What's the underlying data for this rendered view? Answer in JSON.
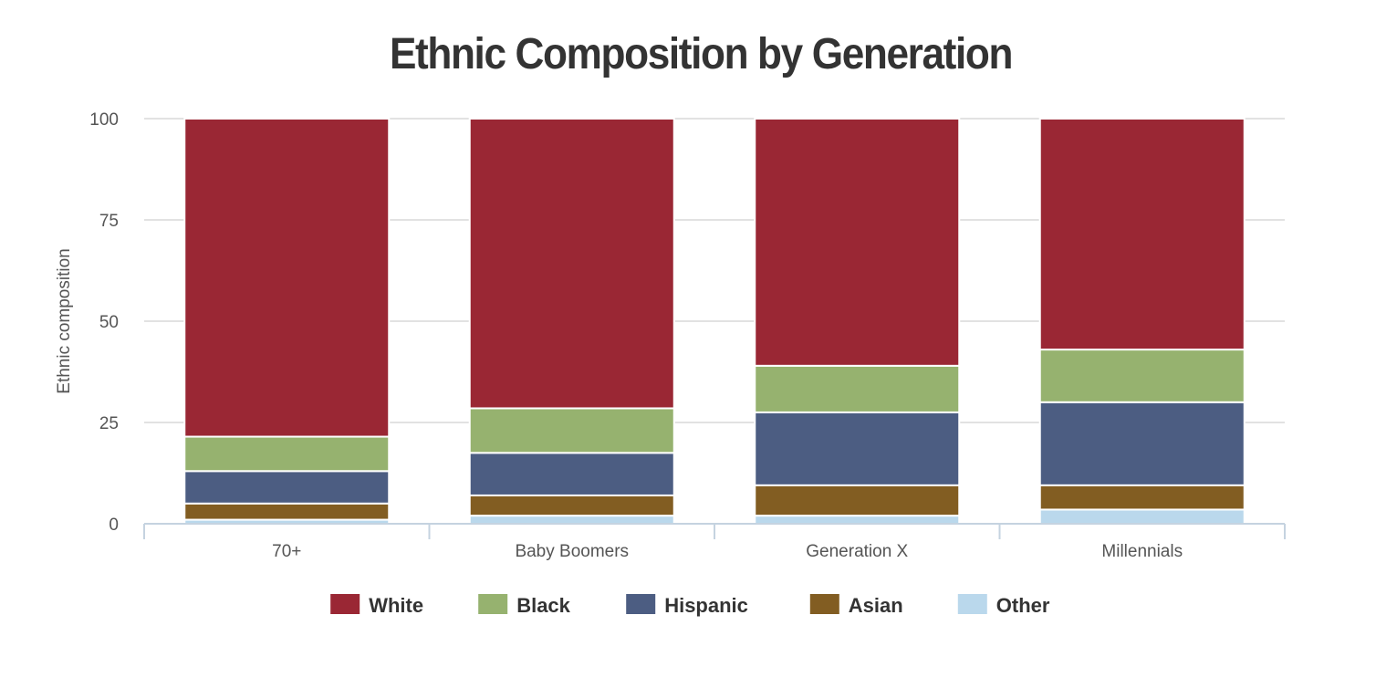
{
  "chart_data": {
    "type": "bar",
    "stacked": true,
    "title": "Ethnic Composition by Generation",
    "xlabel": "",
    "ylabel": "Ethnic composition",
    "ylim": [
      0,
      100
    ],
    "yticks": [
      0,
      25,
      50,
      75,
      100
    ],
    "grid": true,
    "legend_position": "bottom",
    "categories": [
      "70+",
      "Baby Boomers",
      "Generation X",
      "Millennials"
    ],
    "series": [
      {
        "name": "Other",
        "color": "#bad8ec",
        "values": [
          1,
          2,
          2,
          3.5
        ]
      },
      {
        "name": "Asian",
        "color": "#825d22",
        "values": [
          4,
          5,
          7.5,
          6
        ]
      },
      {
        "name": "Hispanic",
        "color": "#4c5d82",
        "values": [
          8,
          10.5,
          18,
          20.5
        ]
      },
      {
        "name": "Black",
        "color": "#96b26f",
        "values": [
          8.5,
          11,
          11.5,
          13
        ]
      },
      {
        "name": "White",
        "color": "#9a2734",
        "values": [
          78.5,
          71.5,
          61,
          57
        ]
      }
    ],
    "legend_order": [
      "White",
      "Black",
      "Hispanic",
      "Asian",
      "Other"
    ]
  }
}
